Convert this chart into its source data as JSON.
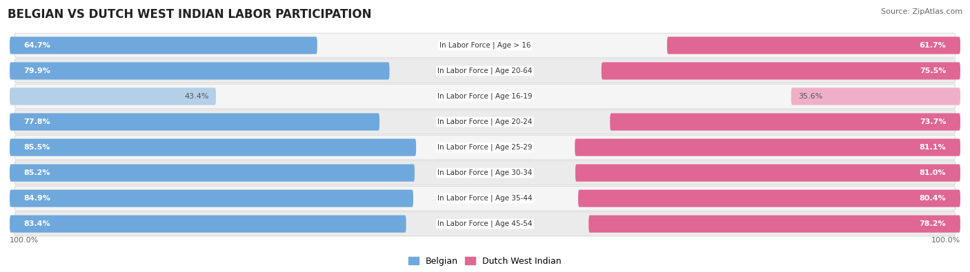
{
  "title": "BELGIAN VS DUTCH WEST INDIAN LABOR PARTICIPATION",
  "source": "Source: ZipAtlas.com",
  "categories": [
    "In Labor Force | Age > 16",
    "In Labor Force | Age 20-64",
    "In Labor Force | Age 16-19",
    "In Labor Force | Age 20-24",
    "In Labor Force | Age 25-29",
    "In Labor Force | Age 30-34",
    "In Labor Force | Age 35-44",
    "In Labor Force | Age 45-54"
  ],
  "belgian_values": [
    64.7,
    79.9,
    43.4,
    77.8,
    85.5,
    85.2,
    84.9,
    83.4
  ],
  "dutch_values": [
    61.7,
    75.5,
    35.6,
    73.7,
    81.1,
    81.0,
    80.4,
    78.2
  ],
  "belgian_color": "#6fa8dc",
  "belgian_color_light": "#b4cfe8",
  "dutch_color": "#e06694",
  "dutch_color_light": "#f0afc8",
  "row_color_odd": "#f2f2f2",
  "row_color_even": "#e8e8e8",
  "bar_max": 100.0,
  "legend_belgian": "Belgian",
  "legend_dutch": "Dutch West Indian",
  "title_fontsize": 12,
  "source_fontsize": 8,
  "value_fontsize": 8,
  "label_fontsize": 7.5
}
